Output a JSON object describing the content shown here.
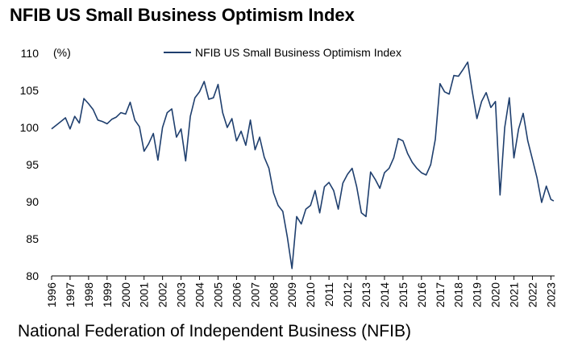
{
  "title": "NFIB US Small Business Optimism Index",
  "source": "National Federation of Independent Business (NFIB)",
  "colors": {
    "line": "#1f3f6e"
  },
  "chart_data": {
    "type": "line",
    "title": "NFIB US Small Business Optimism Index",
    "xlabel": "",
    "ylabel": "(%)",
    "ylim": [
      80,
      110
    ],
    "yticks": [
      80,
      85,
      90,
      95,
      100,
      105,
      110
    ],
    "xticks": [
      "1996",
      "1997",
      "1998",
      "1999",
      "2000",
      "2001",
      "2002",
      "2003",
      "2004",
      "2005",
      "2006",
      "2007",
      "2008",
      "2009",
      "2010",
      "2011",
      "2012",
      "2013",
      "2014",
      "2015",
      "2016",
      "2017",
      "2018",
      "2019",
      "2020",
      "2021",
      "2022",
      "2023"
    ],
    "grid": false,
    "legend": "top-center",
    "series": [
      {
        "name": "NFIB US Small Business Optimism Index",
        "x": [
          1996.0,
          1996.25,
          1996.5,
          1996.75,
          1997.0,
          1997.25,
          1997.5,
          1997.75,
          1998.0,
          1998.25,
          1998.5,
          1998.75,
          1999.0,
          1999.25,
          1999.5,
          1999.75,
          2000.0,
          2000.25,
          2000.5,
          2000.75,
          2001.0,
          2001.25,
          2001.5,
          2001.75,
          2002.0,
          2002.25,
          2002.5,
          2002.75,
          2003.0,
          2003.25,
          2003.5,
          2003.75,
          2004.0,
          2004.25,
          2004.5,
          2004.75,
          2005.0,
          2005.25,
          2005.5,
          2005.75,
          2006.0,
          2006.25,
          2006.5,
          2006.75,
          2007.0,
          2007.25,
          2007.5,
          2007.75,
          2008.0,
          2008.25,
          2008.5,
          2008.75,
          2009.0,
          2009.25,
          2009.5,
          2009.75,
          2010.0,
          2010.25,
          2010.5,
          2010.75,
          2011.0,
          2011.25,
          2011.5,
          2011.75,
          2012.0,
          2012.25,
          2012.5,
          2012.75,
          2013.0,
          2013.25,
          2013.5,
          2013.75,
          2014.0,
          2014.25,
          2014.5,
          2014.75,
          2015.0,
          2015.25,
          2015.5,
          2015.75,
          2016.0,
          2016.25,
          2016.5,
          2016.75,
          2017.0,
          2017.25,
          2017.5,
          2017.75,
          2018.0,
          2018.25,
          2018.5,
          2018.75,
          2019.0,
          2019.25,
          2019.5,
          2019.75,
          2020.0,
          2020.25,
          2020.5,
          2020.75,
          2021.0,
          2021.25,
          2021.5,
          2021.75,
          2022.0,
          2022.25,
          2022.5,
          2022.75,
          2023.0,
          2023.15
        ],
        "values": [
          99.8,
          100.3,
          100.8,
          101.3,
          99.8,
          101.5,
          100.6,
          103.9,
          103.2,
          102.4,
          101.0,
          100.8,
          100.5,
          101.1,
          101.4,
          102.0,
          101.8,
          103.4,
          101.0,
          100.1,
          96.8,
          97.8,
          99.2,
          95.6,
          100.0,
          102.0,
          102.5,
          98.7,
          99.8,
          95.5,
          101.5,
          104.0,
          104.8,
          106.2,
          103.8,
          104.0,
          105.8,
          102.0,
          100.0,
          101.2,
          98.2,
          99.5,
          97.6,
          101.0,
          97.0,
          98.7,
          96.0,
          94.5,
          91.2,
          89.5,
          88.7,
          85.2,
          81.0,
          88.0,
          87.0,
          89.0,
          89.5,
          91.5,
          88.5,
          92.0,
          92.6,
          91.5,
          89.0,
          92.5,
          93.7,
          94.5,
          92.0,
          88.5,
          88.0,
          94.0,
          93.0,
          91.8,
          93.9,
          94.5,
          95.9,
          98.5,
          98.2,
          96.5,
          95.3,
          94.5,
          93.9,
          93.6,
          95.0,
          98.4,
          105.9,
          104.8,
          104.5,
          107.0,
          106.9,
          107.8,
          108.8,
          104.8,
          101.2,
          103.5,
          104.7,
          102.7,
          103.5,
          90.9,
          100.0,
          104.0,
          95.9,
          99.8,
          101.9,
          98.2,
          95.7,
          93.2,
          89.9,
          92.1,
          90.3,
          90.1
        ]
      }
    ]
  }
}
